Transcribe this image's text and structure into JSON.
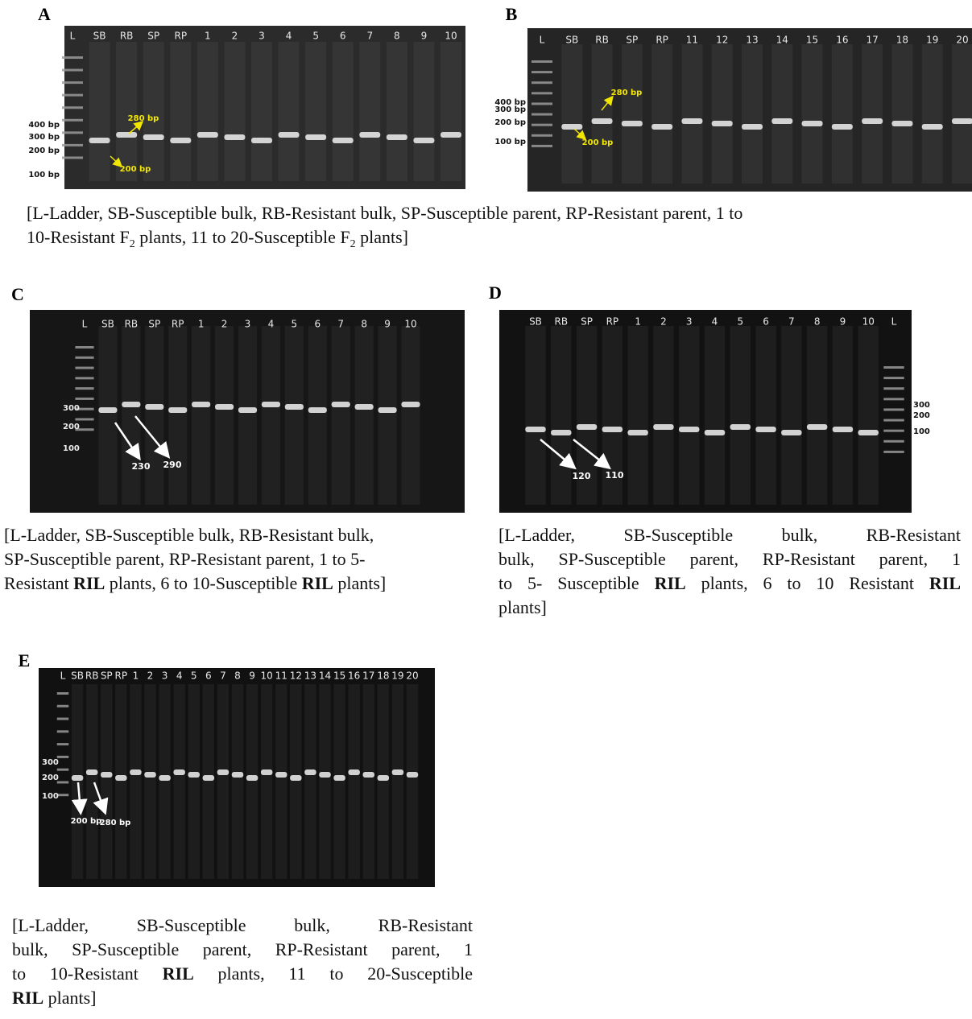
{
  "panels": [
    {
      "letter": "A",
      "lanes": [
        "L",
        "SB",
        "RB",
        "SP",
        "RP",
        "1",
        "2",
        "3",
        "4",
        "5",
        "6",
        "7",
        "8",
        "9",
        "10"
      ],
      "sizes": [
        "400 bp",
        "300 bp",
        "200 bp",
        "100 bp"
      ],
      "annotations": [
        "280 bp",
        "200 bp"
      ]
    },
    {
      "letter": "B",
      "lanes": [
        "L",
        "SB",
        "RB",
        "SP",
        "RP",
        "11",
        "12",
        "13",
        "14",
        "15",
        "16",
        "17",
        "18",
        "19",
        "20"
      ],
      "sizes": [
        "400 bp",
        "300 bp",
        "200 bp",
        "100 bp"
      ],
      "annotations": [
        "280 bp",
        "200 bp"
      ]
    },
    {
      "letter": "C",
      "lanes": [
        "L",
        "SB",
        "RB",
        "SP",
        "RP",
        "1",
        "2",
        "3",
        "4",
        "5",
        "6",
        "7",
        "8",
        "9",
        "10"
      ],
      "sizes": [
        "300",
        "200",
        "100"
      ],
      "annotations": [
        "230",
        "290"
      ]
    },
    {
      "letter": "D",
      "lanes": [
        "SB",
        "RB",
        "SP",
        "RP",
        "1",
        "2",
        "3",
        "4",
        "5",
        "6",
        "7",
        "8",
        "9",
        "10",
        "L"
      ],
      "sizes": [
        "300",
        "200",
        "100"
      ],
      "annotations": [
        "120",
        "110"
      ]
    },
    {
      "letter": "E",
      "lanes": [
        "L",
        "SB",
        "RB",
        "SP",
        "RP",
        "1",
        "2",
        "3",
        "4",
        "5",
        "6",
        "7",
        "8",
        "9",
        "10",
        "11",
        "12",
        "13",
        "14",
        "15",
        "16",
        "17",
        "18",
        "19",
        "20"
      ],
      "sizes": [
        "300",
        "200",
        "100"
      ],
      "annotations": [
        "200 bp",
        "280 bp"
      ]
    }
  ],
  "captions": [
    {
      "lines": [
        [
          {
            "text": "[L-Ladder, SB-Susceptible bulk, RB-Resistant bulk, SP-Susceptible parent, RP-Resistant parent, 1 to"
          }
        ],
        [
          {
            "text": "10-Resistant F"
          },
          {
            "text": "2",
            "sub": true
          },
          {
            "text": " plants, 11 to 20-Susceptible F"
          },
          {
            "text": "2",
            "sub": true
          },
          {
            "text": " plants]"
          }
        ]
      ]
    },
    {
      "lines": [
        [
          {
            "text": "[L-Ladder, SB-Susceptible bulk, RB-Resistant bulk,"
          }
        ],
        [
          {
            "text": "SP-Susceptible parent, RP-Resistant parent, 1 to 5-"
          }
        ],
        [
          {
            "text": "Resistant "
          },
          {
            "text": "RIL",
            "bold": true
          },
          {
            "text": " plants, 6 to 10-Susceptible "
          },
          {
            "text": "RIL",
            "bold": true
          },
          {
            "text": " plants]"
          }
        ]
      ]
    },
    {
      "lines": [
        [
          {
            "text": "[L-Ladder, SB-Susceptible bulk, RB-Resistant"
          }
        ],
        [
          {
            "text": "bulk, SP-Susceptible parent, RP-Resistant parent, 1"
          }
        ],
        [
          {
            "text": "to 5- Susceptible "
          },
          {
            "text": "RIL",
            "bold": true
          },
          {
            "text": " plants, 6 to 10 Resistant "
          },
          {
            "text": "RIL",
            "bold": true
          }
        ],
        [
          {
            "text": "plants]"
          }
        ]
      ]
    },
    {
      "lines": [
        [
          {
            "text": "[L-Ladder, SB-Susceptible bulk, RB-Resistant"
          }
        ],
        [
          {
            "text": "bulk, SP-Susceptible parent, RP-Resistant parent, 1"
          }
        ],
        [
          {
            "text": "to 10-Resistant "
          },
          {
            "text": "RIL",
            "bold": true
          },
          {
            "text": " plants, 11 to 20-Susceptible"
          }
        ],
        [
          {
            "text": "RIL",
            "bold": true
          },
          {
            "text": " plants]"
          }
        ]
      ]
    }
  ]
}
